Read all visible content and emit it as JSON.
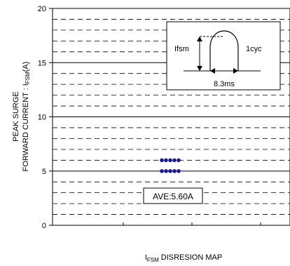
{
  "chart_data": {
    "type": "scatter",
    "title": "",
    "xlabel": "DISRESION MAP",
    "xlabel_prefix": "I",
    "xlabel_subscript": "FSM",
    "ylabel_line1": "PEAK SURGE",
    "ylabel_line2_pre": "FORWARD CURRENT : I",
    "ylabel_line2_sub": "FSM",
    "ylabel_line2_post": "(A)",
    "ylim": [
      0,
      20
    ],
    "yticks": [
      0,
      5,
      10,
      15,
      20
    ],
    "grid": {
      "major": true,
      "minor_dashed": true,
      "minor_step": 1
    },
    "series": [
      {
        "color": "#1a1a8c",
        "points": [
          {
            "x": 0,
            "y": 6
          },
          {
            "x": 1,
            "y": 6
          },
          {
            "x": 2,
            "y": 6
          },
          {
            "x": 3,
            "y": 6
          },
          {
            "x": 4,
            "y": 6
          },
          {
            "x": 0,
            "y": 5
          },
          {
            "x": 1,
            "y": 5
          },
          {
            "x": 2,
            "y": 5
          },
          {
            "x": 3,
            "y": 5
          },
          {
            "x": 4,
            "y": 5
          }
        ]
      }
    ],
    "annotation": "AVE:5.60A",
    "inset": {
      "label_left": "Ifsm",
      "label_right": "1cyc",
      "label_bottom": "8.3ms"
    }
  }
}
